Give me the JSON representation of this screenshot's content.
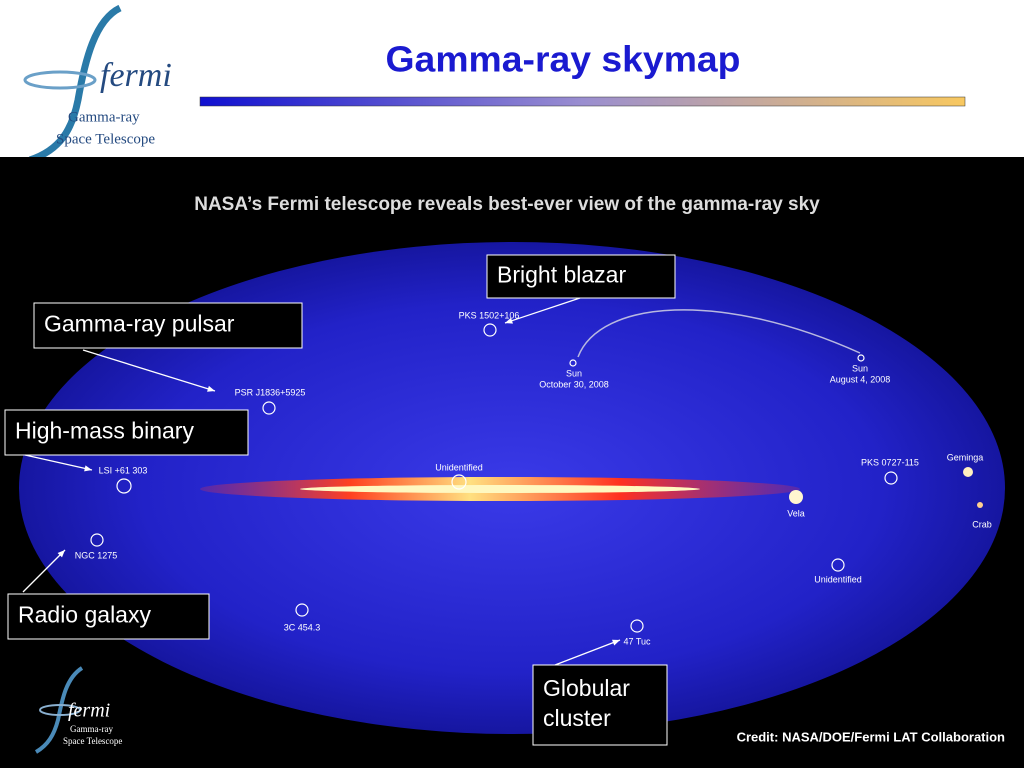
{
  "header": {
    "title": "Gamma-ray skymap",
    "logo": {
      "name": "fermi",
      "line1": "Gamma-ray",
      "line2": "Space Telescope"
    }
  },
  "skymap": {
    "caption": "NASA’s Fermi telescope reveals best-ever view of the gamma-ray sky",
    "sources": [
      {
        "lines": [
          "PKS 1502+106"
        ]
      },
      {
        "lines": [
          "Sun",
          "October 30, 2008"
        ]
      },
      {
        "lines": [
          "Sun",
          "August 4, 2008"
        ]
      },
      {
        "lines": [
          "PSR J1836+5925"
        ]
      },
      {
        "lines": [
          "Unidentified"
        ]
      },
      {
        "lines": [
          "PKS 0727-115"
        ]
      },
      {
        "lines": [
          "Geminga"
        ]
      },
      {
        "lines": [
          "LSI +61 303"
        ]
      },
      {
        "lines": [
          "Vela"
        ]
      },
      {
        "lines": [
          "Crab"
        ]
      },
      {
        "lines": [
          "NGC 1275"
        ]
      },
      {
        "lines": [
          "Unidentified"
        ]
      },
      {
        "lines": [
          "3C 454.3"
        ]
      },
      {
        "lines": [
          "47 Tuc"
        ]
      }
    ],
    "callouts": [
      {
        "lines": [
          "Bright blazar"
        ]
      },
      {
        "lines": [
          "Gamma-ray pulsar"
        ]
      },
      {
        "lines": [
          "High-mass binary"
        ]
      },
      {
        "lines": [
          "Radio galaxy"
        ]
      },
      {
        "lines": [
          "Globular",
          "cluster"
        ]
      }
    ],
    "credit": "Credit: NASA/DOE/Fermi LAT Collaboration"
  },
  "footer_logo": {
    "name": "fermi",
    "line1": "Gamma-ray",
    "line2": "Space Telescope"
  }
}
